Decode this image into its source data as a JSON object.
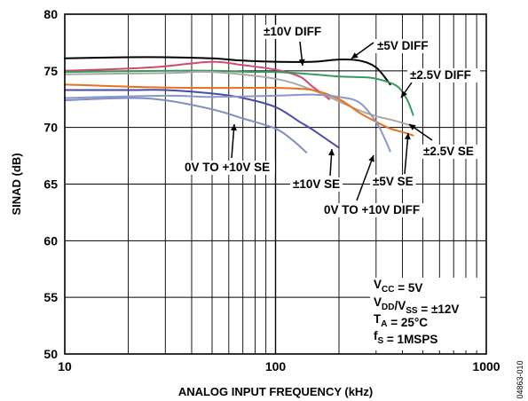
{
  "figure_id": "04863-010",
  "chart_data": {
    "type": "line",
    "title": "",
    "xlabel": "ANALOG INPUT FREQUENCY (kHz)",
    "ylabel": "SINAD (dB)",
    "x_scale": "log",
    "xlim": [
      10,
      1000
    ],
    "ylim": [
      50,
      80
    ],
    "grid": true,
    "x_ticks": [
      10,
      100,
      1000
    ],
    "x_tick_labels": [
      "10",
      "100",
      "1000"
    ],
    "y_ticks": [
      50,
      55,
      60,
      65,
      70,
      75,
      80
    ],
    "y_tick_labels": [
      "50",
      "55",
      "60",
      "65",
      "70",
      "75",
      "80"
    ],
    "series": [
      {
        "name": "±5V DIFF",
        "color": "#000000",
        "x": [
          10,
          20,
          30,
          50,
          70,
          100,
          150,
          200,
          250,
          300,
          350
        ],
        "y": [
          76.1,
          76.2,
          76.2,
          76.1,
          75.9,
          75.8,
          75.8,
          76.0,
          75.9,
          75.3,
          73.8
        ]
      },
      {
        "name": "±10V DIFF",
        "color": "#d04a6e",
        "x": [
          10,
          20,
          30,
          50,
          70,
          100,
          130,
          150,
          180
        ],
        "y": [
          75.0,
          75.2,
          75.4,
          75.8,
          75.5,
          75.1,
          74.5,
          73.6,
          72.5
        ]
      },
      {
        "name": "±2.5V DIFF",
        "color": "#3a9a5b",
        "x": [
          10,
          30,
          50,
          80,
          100,
          150,
          200,
          280,
          330,
          380,
          420,
          450
        ],
        "y": [
          74.9,
          75.0,
          75.0,
          74.9,
          74.9,
          74.7,
          74.5,
          74.4,
          74.1,
          73.6,
          72.5,
          71.1
        ]
      },
      {
        "name": "±2.5V SE",
        "color": "#a8a8a8",
        "x": [
          10,
          30,
          50,
          100,
          150,
          200,
          250,
          300,
          350,
          400,
          450
        ],
        "y": [
          74.7,
          74.8,
          74.9,
          74.3,
          73.3,
          72.3,
          71.5,
          71.0,
          70.7,
          70.4,
          70.1
        ]
      },
      {
        "name": "±5V SE",
        "color": "#e8721e",
        "x": [
          10,
          20,
          40,
          80,
          100,
          150,
          200,
          250,
          300,
          350,
          400,
          450
        ],
        "y": [
          73.8,
          73.6,
          73.5,
          73.5,
          73.5,
          73.3,
          72.5,
          71.3,
          70.5,
          69.9,
          69.6,
          69.3
        ]
      },
      {
        "name": "±10V SE",
        "color": "#4a4aa8",
        "x": [
          10,
          20,
          30,
          50,
          70,
          100,
          130,
          150,
          200
        ],
        "y": [
          73.3,
          73.3,
          73.3,
          73.0,
          72.6,
          71.8,
          70.5,
          69.8,
          68.2
        ]
      },
      {
        "name": "0V TO +10V SE",
        "color": "#7f8fc2",
        "x": [
          10,
          20,
          30,
          50,
          70,
          100,
          120,
          140
        ],
        "y": [
          72.4,
          72.6,
          72.4,
          71.6,
          70.8,
          69.9,
          68.9,
          67.8
        ]
      },
      {
        "name": "0V TO +10V DIFF",
        "color": "#8a97c8",
        "x": [
          10,
          30,
          50,
          100,
          150,
          200,
          250,
          300,
          330,
          350
        ],
        "y": [
          72.6,
          72.8,
          72.7,
          72.8,
          72.9,
          72.7,
          72.2,
          70.5,
          69.0,
          67.9
        ]
      }
    ],
    "annotations": [
      {
        "text": "±10V DIFF",
        "series": "±10V DIFF"
      },
      {
        "text": "±5V DIFF",
        "series": "±5V DIFF"
      },
      {
        "text": "±2.5V DIFF",
        "series": "±2.5V DIFF"
      },
      {
        "text": "±2.5V SE",
        "series": "±2.5V SE"
      },
      {
        "text": "±5V SE",
        "series": "±5V SE"
      },
      {
        "text": "±10V SE",
        "series": "±10V SE"
      },
      {
        "text": "0V TO +10V SE",
        "series": "0V TO +10V SE"
      },
      {
        "text": "0V TO +10V DIFF",
        "series": "0V TO +10V DIFF"
      }
    ],
    "conditions": [
      {
        "name": "V",
        "sub": "CC",
        "value": " = 5V"
      },
      {
        "name": "V",
        "sub": "DD",
        "name2": "/V",
        "sub2": "SS",
        "value": " = ±12V"
      },
      {
        "name": "T",
        "sub": "A",
        "value": " = 25°C"
      },
      {
        "name": "f",
        "sub": "S",
        "value": " = 1MSPS"
      }
    ]
  }
}
